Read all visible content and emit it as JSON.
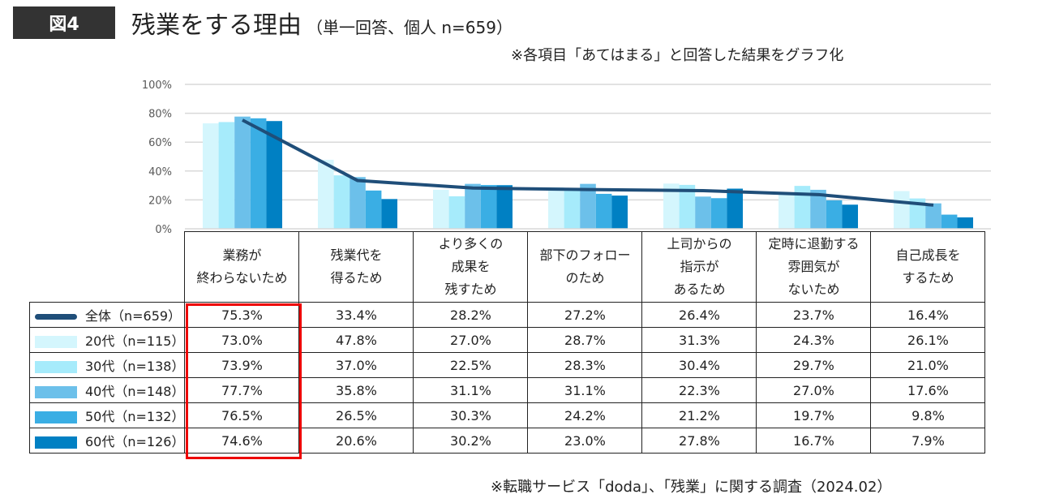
{
  "header": {
    "fig": "図4",
    "title": "残業をする理由",
    "subtitle": "（単一回答、個人 n=659）",
    "note": "※各項目「あてはまる」と回答した結果をグラフ化"
  },
  "source": "※転職サービス「doda」、「残業」に関する調査（2024.02）",
  "chart_data": {
    "type": "bar+line",
    "title": "残業をする理由",
    "ylim": [
      0,
      100
    ],
    "yticks": [
      "0%",
      "20%",
      "40%",
      "60%",
      "80%",
      "100%"
    ],
    "grid": true,
    "categories": [
      [
        "業務が",
        "終わらないため"
      ],
      [
        "残業代を",
        "得るため"
      ],
      [
        "より多くの",
        "成果を",
        "残すため"
      ],
      [
        "部下のフォロー",
        "のため"
      ],
      [
        "上司からの",
        "指示が",
        "あるため"
      ],
      [
        "定時に退勤する",
        "雰囲気が",
        "ないため"
      ],
      [
        "自己成長を",
        "するため"
      ]
    ],
    "line": {
      "name": "全体（n=659）",
      "color": "#1f4e79",
      "values": [
        75.3,
        33.4,
        28.2,
        27.2,
        26.4,
        23.7,
        16.4
      ],
      "labels": [
        "75.3%",
        "33.4%",
        "28.2%",
        "27.2%",
        "26.4%",
        "23.7%",
        "16.4%"
      ]
    },
    "series": [
      {
        "name": "20代（n=115）",
        "color": "#d4f6fd",
        "values": [
          73.0,
          47.8,
          27.0,
          28.7,
          31.3,
          24.3,
          26.1
        ],
        "labels": [
          "73.0%",
          "47.8%",
          "27.0%",
          "28.7%",
          "31.3%",
          "24.3%",
          "26.1%"
        ]
      },
      {
        "name": "30代（n=138）",
        "color": "#a6ebfb",
        "values": [
          73.9,
          37.0,
          22.5,
          28.3,
          30.4,
          29.7,
          21.0
        ],
        "labels": [
          "73.9%",
          "37.0%",
          "22.5%",
          "28.3%",
          "30.4%",
          "29.7%",
          "21.0%"
        ]
      },
      {
        "name": "40代（n=148）",
        "color": "#6cc0ea",
        "values": [
          77.7,
          35.8,
          31.1,
          31.1,
          22.3,
          27.0,
          17.6
        ],
        "labels": [
          "77.7%",
          "35.8%",
          "31.1%",
          "31.1%",
          "22.3%",
          "27.0%",
          "17.6%"
        ]
      },
      {
        "name": "50代（n=132）",
        "color": "#3aaee4",
        "values": [
          76.5,
          26.5,
          30.3,
          24.2,
          21.2,
          19.7,
          9.8
        ],
        "labels": [
          "76.5%",
          "26.5%",
          "30.3%",
          "24.2%",
          "21.2%",
          "19.7%",
          "9.8%"
        ]
      },
      {
        "name": "60代（n=126）",
        "color": "#0080c3",
        "values": [
          74.6,
          20.6,
          30.2,
          23.0,
          27.8,
          16.7,
          7.9
        ],
        "labels": [
          "74.6%",
          "20.6%",
          "30.2%",
          "23.0%",
          "27.8%",
          "16.7%",
          "7.9%"
        ]
      }
    ],
    "highlight": "業務が終わらないため"
  }
}
